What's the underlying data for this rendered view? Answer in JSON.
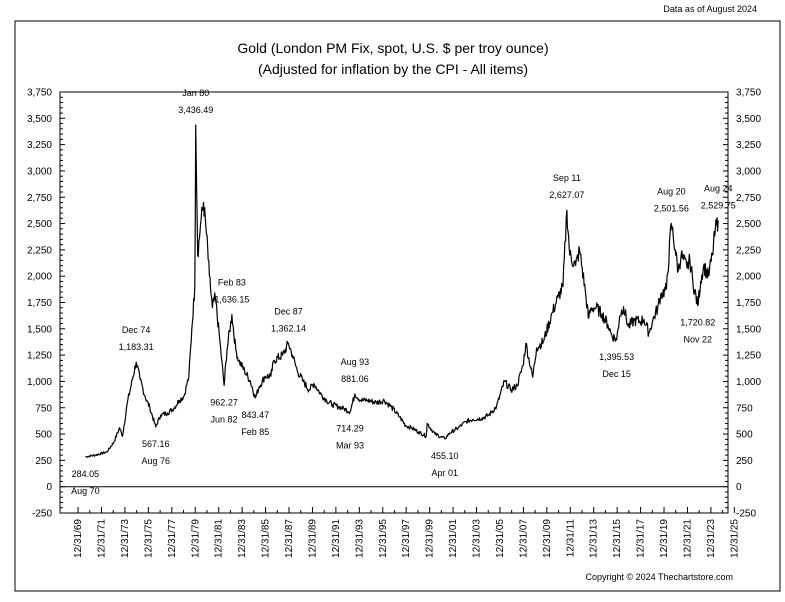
{
  "data_date": "Data as of August 2024",
  "copyright": "Copyright © 2024 Thechartstore.com",
  "chart_data": {
    "type": "line",
    "title": "Gold (London PM Fix, spot, U.S. $ per troy ounce)",
    "subtitle": "(Adjusted for inflation by the CPI - All items)",
    "xlabel": "",
    "ylabel": "",
    "ylim": [
      -250,
      3750
    ],
    "xlim": [
      "1968-06",
      "2025-06"
    ],
    "y_ticks": [
      -250,
      0,
      250,
      500,
      750,
      1000,
      1250,
      1500,
      1750,
      2000,
      2250,
      2500,
      2750,
      3000,
      3250,
      3500,
      3750
    ],
    "y_tick_labels": [
      "-250",
      "0",
      "250",
      "500",
      "750",
      "1,000",
      "1,250",
      "1,500",
      "1,750",
      "2,000",
      "2,250",
      "2,500",
      "2,750",
      "3,000",
      "3,250",
      "3,500",
      "3,750"
    ],
    "x_tick_labels": [
      "12/31/69",
      "12/31/71",
      "12/31/73",
      "12/31/75",
      "12/31/77",
      "12/31/79",
      "12/31/81",
      "12/31/83",
      "12/31/85",
      "12/31/87",
      "12/31/89",
      "12/31/91",
      "12/31/93",
      "12/31/95",
      "12/31/97",
      "12/31/99",
      "12/31/01",
      "12/31/03",
      "12/31/05",
      "12/31/07",
      "12/31/09",
      "12/31/11",
      "12/31/13",
      "12/31/15",
      "12/31/17",
      "12/31/19",
      "12/31/21",
      "12/31/23",
      "12/31/25"
    ],
    "grid": false,
    "legend": "none",
    "line_color": "#000000",
    "series": [
      {
        "points": [
          [
            "1970-08",
            284
          ],
          [
            "1971-06",
            300
          ],
          [
            "1972-06",
            330
          ],
          [
            "1973-01",
            420
          ],
          [
            "1973-07",
            560
          ],
          [
            "1973-10",
            480
          ],
          [
            "1974-03",
            800
          ],
          [
            "1974-12",
            1183
          ],
          [
            "1975-04",
            1020
          ],
          [
            "1975-09",
            860
          ],
          [
            "1976-02",
            750
          ],
          [
            "1976-08",
            567
          ],
          [
            "1977-01",
            680
          ],
          [
            "1977-08",
            700
          ],
          [
            "1978-03",
            750
          ],
          [
            "1978-08",
            820
          ],
          [
            "1979-01",
            860
          ],
          [
            "1979-06",
            1050
          ],
          [
            "1979-09",
            1500
          ],
          [
            "1979-12",
            1900
          ],
          [
            "1980-01",
            3436
          ],
          [
            "1980-03",
            2200
          ],
          [
            "1980-06",
            2500
          ],
          [
            "1980-09",
            2700
          ],
          [
            "1980-12",
            2400
          ],
          [
            "1981-03",
            2000
          ],
          [
            "1981-06",
            1700
          ],
          [
            "1981-09",
            1800
          ],
          [
            "1982-01",
            1450
          ],
          [
            "1982-06",
            962
          ],
          [
            "1982-09",
            1300
          ],
          [
            "1983-02",
            1636
          ],
          [
            "1983-06",
            1300
          ],
          [
            "1983-09",
            1200
          ],
          [
            "1984-03",
            1100
          ],
          [
            "1984-09",
            1000
          ],
          [
            "1985-02",
            843
          ],
          [
            "1985-06",
            950
          ],
          [
            "1985-12",
            1050
          ],
          [
            "1986-06",
            1050
          ],
          [
            "1986-09",
            1200
          ],
          [
            "1987-06",
            1250
          ],
          [
            "1987-12",
            1362
          ],
          [
            "1988-04",
            1250
          ],
          [
            "1988-09",
            1100
          ],
          [
            "1989-03",
            1000
          ],
          [
            "1989-09",
            920
          ],
          [
            "1990-02",
            980
          ],
          [
            "1990-09",
            880
          ],
          [
            "1991-03",
            820
          ],
          [
            "1991-09",
            780
          ],
          [
            "1992-03",
            760
          ],
          [
            "1992-09",
            740
          ],
          [
            "1993-03",
            714
          ],
          [
            "1993-08",
            881
          ],
          [
            "1994-02",
            820
          ],
          [
            "1994-09",
            820
          ],
          [
            "1995-06",
            800
          ],
          [
            "1996-02",
            820
          ],
          [
            "1996-09",
            760
          ],
          [
            "1997-06",
            660
          ],
          [
            "1997-12",
            580
          ],
          [
            "1998-06",
            560
          ],
          [
            "1999-01",
            520
          ],
          [
            "1999-09",
            480
          ],
          [
            "1999-10",
            600
          ],
          [
            "2000-06",
            500
          ],
          [
            "2001-04",
            455
          ],
          [
            "2001-09",
            510
          ],
          [
            "2002-06",
            560
          ],
          [
            "2003-02",
            620
          ],
          [
            "2003-09",
            640
          ],
          [
            "2004-06",
            650
          ],
          [
            "2005-01",
            680
          ],
          [
            "2005-09",
            760
          ],
          [
            "2006-05",
            1000
          ],
          [
            "2006-12",
            920
          ],
          [
            "2007-06",
            960
          ],
          [
            "2007-12",
            1150
          ],
          [
            "2008-03",
            1360
          ],
          [
            "2008-10",
            1040
          ],
          [
            "2009-02",
            1320
          ],
          [
            "2009-09",
            1380
          ],
          [
            "2010-06",
            1650
          ],
          [
            "2010-12",
            1800
          ],
          [
            "2011-05",
            1900
          ],
          [
            "2011-09",
            2627
          ],
          [
            "2011-12",
            2200
          ],
          [
            "2012-06",
            2100
          ],
          [
            "2012-10",
            2250
          ],
          [
            "2013-04",
            1850
          ],
          [
            "2013-07",
            1600
          ],
          [
            "2013-10",
            1700
          ],
          [
            "2014-03",
            1700
          ],
          [
            "2014-09",
            1640
          ],
          [
            "2015-03",
            1540
          ],
          [
            "2015-07",
            1440
          ],
          [
            "2015-12",
            1395
          ],
          [
            "2016-03",
            1620
          ],
          [
            "2016-07",
            1710
          ],
          [
            "2016-12",
            1520
          ],
          [
            "2017-06",
            1580
          ],
          [
            "2017-12",
            1570
          ],
          [
            "2018-04",
            1590
          ],
          [
            "2018-09",
            1460
          ],
          [
            "2019-01",
            1580
          ],
          [
            "2019-06",
            1700
          ],
          [
            "2019-09",
            1820
          ],
          [
            "2020-03",
            1880
          ],
          [
            "2020-08",
            2501
          ],
          [
            "2020-12",
            2250
          ],
          [
            "2021-03",
            2050
          ],
          [
            "2021-06",
            2200
          ],
          [
            "2021-12",
            2080
          ],
          [
            "2022-03",
            2150
          ],
          [
            "2022-06",
            1950
          ],
          [
            "2022-11",
            1720
          ],
          [
            "2023-02",
            1950
          ],
          [
            "2023-05",
            2100
          ],
          [
            "2023-10",
            2000
          ],
          [
            "2024-02",
            2200
          ],
          [
            "2024-05",
            2440
          ],
          [
            "2024-08",
            2529
          ]
        ]
      }
    ],
    "annotations": [
      {
        "date": "1970-08",
        "value": 284.05,
        "value_label": "284.05",
        "date_label": "Aug 70",
        "placement": "below"
      },
      {
        "date": "1974-12",
        "value": 1183.31,
        "value_label": "1,183.31",
        "date_label": "Dec 74",
        "placement": "above"
      },
      {
        "date": "1976-08",
        "value": 567.16,
        "value_label": "567.16",
        "date_label": "Aug 76",
        "placement": "below"
      },
      {
        "date": "1980-01",
        "value": 3436.49,
        "value_label": "3,436.49",
        "date_label": "Jan 80",
        "placement": "above"
      },
      {
        "date": "1982-06",
        "value": 962.27,
        "value_label": "962.27",
        "date_label": "Jun 82",
        "placement": "below"
      },
      {
        "date": "1983-02",
        "value": 1636.15,
        "value_label": "1,636.15",
        "date_label": "Feb 83",
        "placement": "above"
      },
      {
        "date": "1985-02",
        "value": 843.47,
        "value_label": "843.47",
        "date_label": "Feb 85",
        "placement": "below"
      },
      {
        "date": "1987-12",
        "value": 1362.14,
        "value_label": "1,362.14",
        "date_label": "Dec 87",
        "placement": "above"
      },
      {
        "date": "1993-03",
        "value": 714.29,
        "value_label": "714.29",
        "date_label": "Mar 93",
        "placement": "below"
      },
      {
        "date": "1993-08",
        "value": 881.06,
        "value_label": "881.06",
        "date_label": "Aug 93",
        "placement": "above"
      },
      {
        "date": "2001-04",
        "value": 455.1,
        "value_label": "455.10",
        "date_label": "Apr 01",
        "placement": "below"
      },
      {
        "date": "2011-09",
        "value": 2627.07,
        "value_label": "2,627.07",
        "date_label": "Sep 11",
        "placement": "above"
      },
      {
        "date": "2015-12",
        "value": 1395.53,
        "value_label": "1,395.53",
        "date_label": "Dec 15",
        "placement": "below"
      },
      {
        "date": "2020-08",
        "value": 2501.56,
        "value_label": "2,501.56",
        "date_label": "Aug 20",
        "placement": "above"
      },
      {
        "date": "2022-11",
        "value": 1720.82,
        "value_label": "1,720.82",
        "date_label": "Nov 22",
        "placement": "below"
      },
      {
        "date": "2024-08",
        "value": 2529.75,
        "value_label": "2,529.75",
        "date_label": "Aug 24",
        "placement": "above"
      }
    ]
  }
}
